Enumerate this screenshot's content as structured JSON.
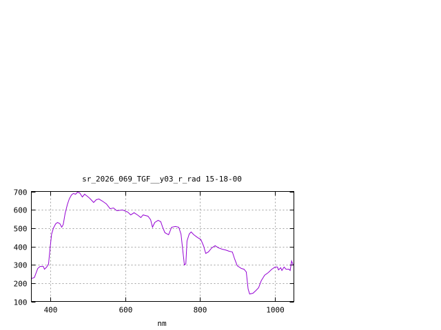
{
  "chart_data": {
    "type": "line",
    "title": "sr_2026_069_TGF__y03_r_rad 15-18-00",
    "xlabel": "nm",
    "ylabel": "",
    "xlim": [
      350,
      1050
    ],
    "ylim": [
      100,
      700
    ],
    "xticks": [
      400,
      600,
      800,
      1000
    ],
    "yticks": [
      100,
      200,
      300,
      400,
      500,
      600,
      700
    ],
    "grid": true,
    "legend": "none",
    "series": [
      {
        "color": "#9400d3",
        "x": [
          349,
          358,
          367,
          373,
          382,
          385,
          391,
          396,
          400,
          404,
          409,
          415,
          420,
          426,
          431,
          435,
          440,
          446,
          451,
          457,
          462,
          468,
          473,
          479,
          486,
          492,
          499,
          506,
          516,
          523,
          530,
          539,
          550,
          560,
          569,
          578,
          593,
          607,
          615,
          624,
          633,
          642,
          648,
          661,
          668,
          673,
          679,
          688,
          695,
          700,
          706,
          716,
          724,
          734,
          743,
          749,
          754,
          758,
          762,
          765,
          771,
          776,
          783,
          793,
          802,
          809,
          815,
          822,
          831,
          840,
          849,
          859,
          868,
          877,
          886,
          892,
          899,
          910,
          917,
          923,
          928,
          932,
          941,
          949,
          956,
          963,
          972,
          982,
          991,
          1000,
          1006,
          1009,
          1015,
          1018,
          1024,
          1029,
          1037,
          1040,
          1044,
          1048
        ],
        "y": [
          224,
          231,
          280,
          291,
          291,
          276,
          288,
          306,
          392,
          467,
          501,
          524,
          531,
          524,
          505,
          520,
          580,
          629,
          659,
          681,
          689,
          685,
          696,
          692,
          670,
          685,
          674,
          662,
          640,
          655,
          659,
          648,
          632,
          606,
          610,
          595,
          599,
          588,
          572,
          584,
          572,
          558,
          572,
          565,
          546,
          505,
          531,
          543,
          535,
          505,
          475,
          464,
          505,
          509,
          505,
          467,
          374,
          299,
          306,
          430,
          468,
          479,
          464,
          449,
          438,
          404,
          362,
          370,
          392,
          404,
          392,
          385,
          381,
          374,
          370,
          332,
          295,
          280,
          276,
          261,
          168,
          141,
          145,
          160,
          175,
          213,
          243,
          258,
          276,
          288,
          288,
          272,
          284,
          269,
          288,
          276,
          276,
          269,
          321,
          299
        ]
      }
    ]
  }
}
